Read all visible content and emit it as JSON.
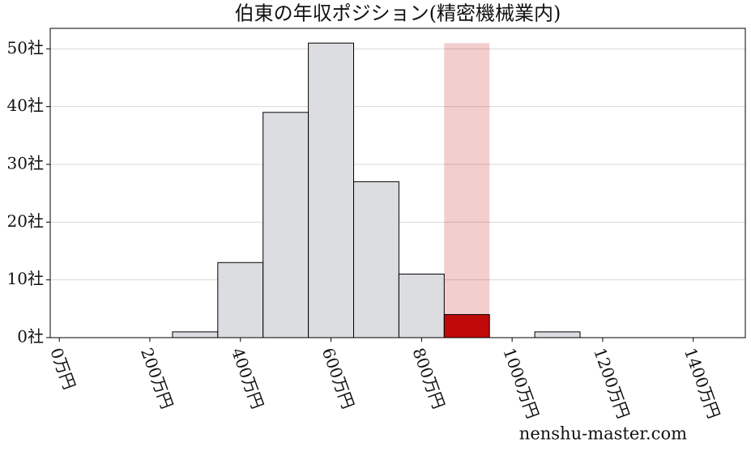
{
  "chart_data": {
    "type": "histogram",
    "title": "伯東の年収ポジション(精密機械業内)",
    "bins": [
      250,
      350,
      450,
      550,
      650,
      750,
      850,
      950,
      1050,
      1150
    ],
    "values": [
      1,
      13,
      39,
      51,
      27,
      11,
      4,
      0,
      1
    ],
    "color": "#dcdde0",
    "colors": [
      "#dcdde0",
      "#dcdde0",
      "#dcdde0",
      "#dcdde0",
      "#dcdde0",
      "#dcdde0",
      "#c00a0a",
      "#dcdde0",
      "#dcdde0"
    ],
    "xlim": [
      -20,
      1515
    ],
    "xticks": [
      {
        "value": 0,
        "label": "0万円"
      },
      {
        "value": 200,
        "label": "200万円"
      },
      {
        "value": 400,
        "label": "400万円"
      },
      {
        "value": 600,
        "label": "600万円"
      },
      {
        "value": 800,
        "label": "800万円"
      },
      {
        "value": 1000,
        "label": "1000万円"
      },
      {
        "value": 1200,
        "label": "1200万円"
      },
      {
        "value": 1400,
        "label": "1400万円"
      }
    ],
    "ylim": [
      0,
      53.55
    ],
    "yticks": [
      {
        "value": 0,
        "label": "0社"
      },
      {
        "value": 10,
        "label": "10社"
      },
      {
        "value": 20,
        "label": "20社"
      },
      {
        "value": 30,
        "label": "30社"
      },
      {
        "value": 40,
        "label": "40社"
      },
      {
        "value": 50,
        "label": "50社"
      }
    ],
    "grid": true,
    "watermark": "nenshu-master.com"
  }
}
